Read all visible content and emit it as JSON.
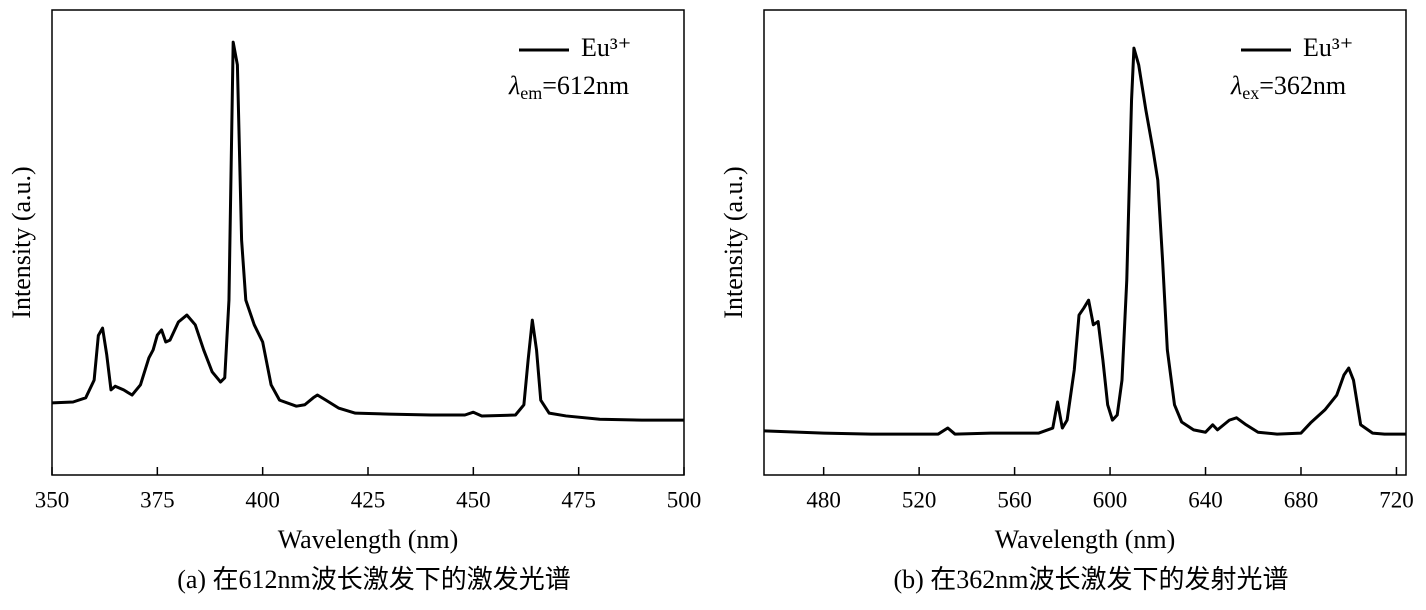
{
  "chart_data": [
    {
      "type": "line",
      "caption": "(a) 在612nm波长激发下的激发光谱",
      "xlabel": "Wavelength (nm)",
      "ylabel": "Intensity (a.u.)",
      "xlim": [
        350,
        500
      ],
      "ylim": [
        0,
        100
      ],
      "xticks": [
        350,
        375,
        400,
        425,
        450,
        475,
        500
      ],
      "legend": "upper right",
      "annotation": {
        "symbol": "λ",
        "sub": "em",
        "text": "=612nm"
      },
      "x": [
        350,
        355,
        358,
        360,
        361,
        362,
        363,
        364,
        365,
        367,
        369,
        371,
        373,
        374,
        375,
        376,
        377,
        378,
        380,
        382,
        384,
        386,
        388,
        390,
        391,
        392,
        393,
        394,
        395,
        396,
        398,
        400,
        402,
        404,
        408,
        410,
        412,
        413,
        415,
        418,
        422,
        430,
        440,
        448,
        450,
        452,
        460,
        462,
        463,
        464,
        465,
        466,
        468,
        472,
        480,
        490,
        500
      ],
      "series": [
        {
          "name": "Eu³⁺",
          "color": "#000000",
          "values": [
            15.5,
            15.7,
            16.6,
            20.4,
            30,
            31.6,
            25.8,
            18.3,
            19.1,
            18.3,
            17.2,
            19.4,
            25.2,
            26.9,
            30.1,
            31.2,
            28.6,
            29,
            32.9,
            34.4,
            32.3,
            26.9,
            22.2,
            20,
            20.9,
            37.6,
            93.1,
            88.2,
            50.5,
            37.6,
            32.3,
            28.6,
            19.4,
            16.1,
            14.8,
            15.1,
            16.6,
            17.2,
            16.1,
            14.4,
            13.3,
            13.1,
            12.9,
            12.9,
            13.5,
            12.7,
            12.9,
            15.1,
            24.7,
            33.3,
            26.9,
            16.1,
            13.3,
            12.7,
            12,
            11.8,
            11.8
          ]
        }
      ]
    },
    {
      "type": "line",
      "caption": "(b) 在362nm波长激发下的发射光谱",
      "xlabel": "Wavelength (nm)",
      "ylabel": "Intensity (a.u.)",
      "xlim": [
        455,
        724
      ],
      "ylim": [
        0,
        100
      ],
      "xticks": [
        480,
        520,
        560,
        600,
        640,
        680,
        720
      ],
      "legend": "upper right",
      "annotation": {
        "symbol": "λ",
        "sub": "ex",
        "text": "=362nm"
      },
      "x": [
        455,
        480,
        500,
        528,
        532,
        535,
        550,
        570,
        576,
        578,
        580,
        582,
        585,
        587,
        589,
        591,
        593,
        595,
        597,
        599,
        601,
        603,
        605,
        607,
        609,
        610,
        612,
        615,
        618,
        620,
        622,
        624,
        627,
        630,
        635,
        640,
        643,
        645,
        650,
        653,
        657,
        662,
        670,
        680,
        684,
        690,
        695,
        698,
        700,
        702,
        705,
        710,
        715,
        720,
        724
      ],
      "series": [
        {
          "name": "Eu³⁺",
          "color": "#000000",
          "values": [
            9.5,
            9,
            8.8,
            8.8,
            10.1,
            8.8,
            9,
            9,
            10.1,
            15.7,
            10.1,
            11.8,
            22.6,
            34.4,
            35.9,
            37.6,
            32.3,
            33,
            24.7,
            15.1,
            11.8,
            12.9,
            20.4,
            41.9,
            80.6,
            91.8,
            88.2,
            78.5,
            69.9,
            63.4,
            46.2,
            26.9,
            15.1,
            11.4,
            9.7,
            9.2,
            10.8,
            9.7,
            11.8,
            12.3,
            10.8,
            9.2,
            8.8,
            9,
            11.2,
            14,
            17.2,
            21.5,
            23,
            20.4,
            10.8,
            9,
            8.8,
            8.8,
            8.8
          ]
        }
      ]
    }
  ]
}
